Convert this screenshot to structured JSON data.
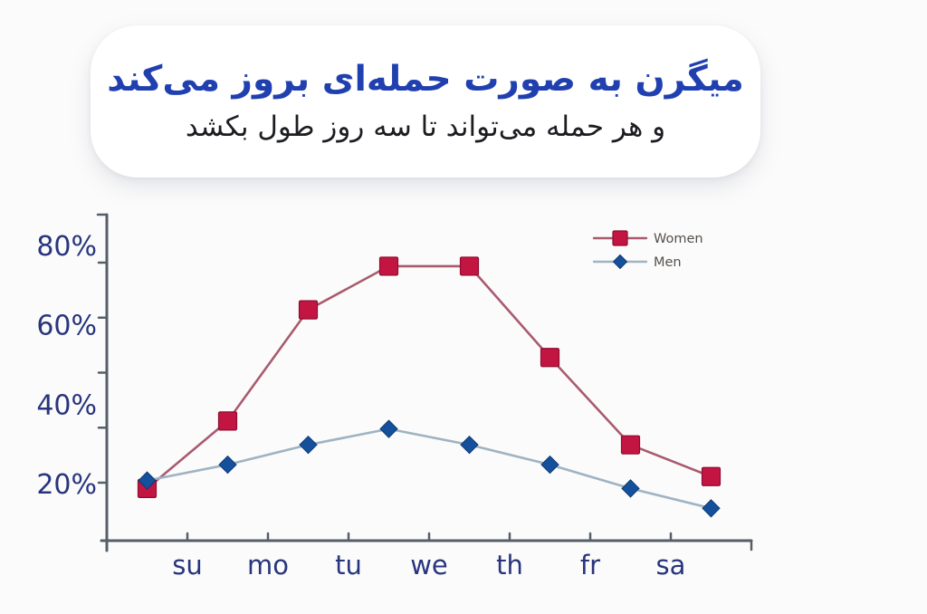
{
  "header": {
    "title": "میگرن به صورت حمله‌ای بروز می‌کند",
    "subtitle": "و هر حمله می‌تواند تا سه روز طول بکشد"
  },
  "chart_data": {
    "type": "line",
    "x_tick_labels": [
      "su",
      "mo",
      "tu",
      "we",
      "th",
      "fr",
      "sa"
    ],
    "x_label_alignment": "labels_on_boundaries_between_points",
    "series": [
      {
        "name": "Women",
        "marker": "square",
        "marker_color": "#c31542",
        "marker_edge": "#8e0c30",
        "line_color": "#a95b6e",
        "values": [
          19,
          36,
          64,
          75,
          75,
          52,
          30,
          22
        ]
      },
      {
        "name": "Men",
        "marker": "diamond",
        "marker_color": "#15509c",
        "marker_edge": "#0e3a73",
        "line_color": "#9fb3c2",
        "values": [
          21,
          25,
          30,
          34,
          30,
          25,
          19,
          14
        ]
      }
    ],
    "unit": "%",
    "y_tick_labels": [
      "80%",
      "60%",
      "40%",
      "20%"
    ],
    "y_tick_values": [
      80,
      60,
      40,
      20
    ],
    "ylim": [
      6,
      88
    ],
    "grid": false,
    "legend_position": "top-right"
  },
  "colors": {
    "page_bg": "#fbfbfb",
    "card_bg": "#ffffff",
    "title_blue": "#2140b0",
    "subtitle_dark": "#1c1d21",
    "axis_gray": "#565e68",
    "axis_label_navy": "#28357c",
    "legend_text": "#55504b"
  }
}
